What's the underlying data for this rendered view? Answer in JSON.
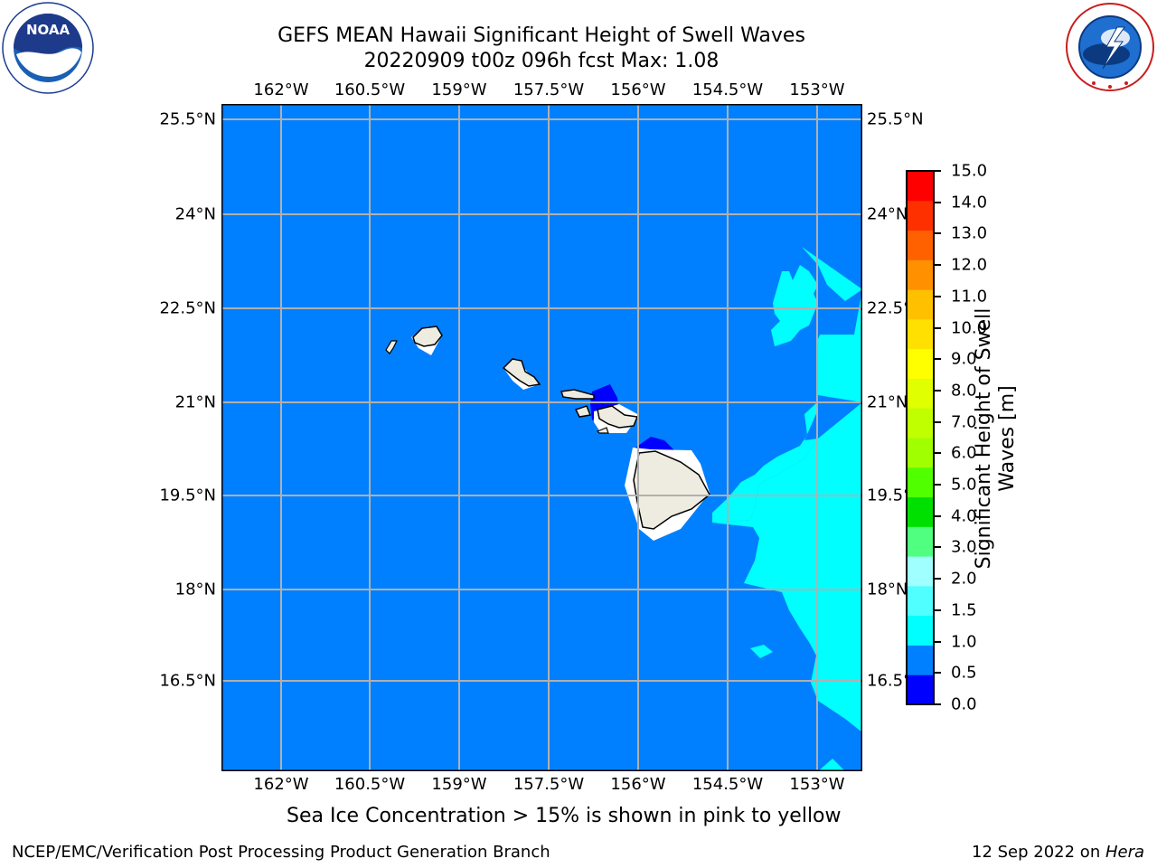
{
  "title": {
    "line1": "GEFS MEAN Hawaii Significant Height of Swell Waves",
    "line2": "20220909 t00z 096h fcst   Max: 1.08"
  },
  "map": {
    "lon_ticks": [
      "162°W",
      "160.5°W",
      "159°W",
      "157.5°W",
      "156°W",
      "154.5°W",
      "153°W"
    ],
    "lat_ticks": [
      "25.5°N",
      "24°N",
      "22.5°N",
      "21°N",
      "19.5°N",
      "18°N",
      "16.5°N"
    ],
    "ocean_color": "#0080ff",
    "land_color": "#eeece0",
    "features": [
      "Kauai",
      "Oahu",
      "Molokai",
      "Maui",
      "Lanai",
      "Hawaii"
    ]
  },
  "colorbar": {
    "label": "Significant Height of Swell Waves [m]",
    "label_line1": "Significant Height of Swell",
    "label_line2": "Waves [m]",
    "ticks": [
      "15.0",
      "14.0",
      "13.0",
      "12.0",
      "11.0",
      "10.0",
      "9.0",
      "8.0",
      "7.0",
      "6.0",
      "5.0",
      "4.0",
      "3.0",
      "2.0",
      "1.5",
      "1.0",
      "0.5",
      "0.0"
    ],
    "colors": [
      "#0000ff",
      "#0080ff",
      "#00ffff",
      "#50ffff",
      "#a0ffff",
      "#50ff80",
      "#00e000",
      "#50ff00",
      "#a0ff00",
      "#c0ff00",
      "#e0ff00",
      "#ffff00",
      "#ffe000",
      "#ffc000",
      "#ff9000",
      "#ff6000",
      "#ff3000",
      "#ff0000"
    ]
  },
  "logos": {
    "noaa": "NOAA",
    "noaa_ring": "NATIONAL OCEANIC AND ATMOSPHERIC ADMINISTRATION · U.S. DEPARTMENT OF COMMERCE",
    "nws_ring": "NATIONAL WEATHER SERVICE"
  },
  "notes": {
    "sea_ice": "Sea Ice Concentration > 15% is shown in pink to yellow"
  },
  "footer": {
    "left": "NCEP/EMC/Verification Post Processing Product Generation Branch",
    "date": "12 Sep 2022 on ",
    "machine": "Hera"
  }
}
